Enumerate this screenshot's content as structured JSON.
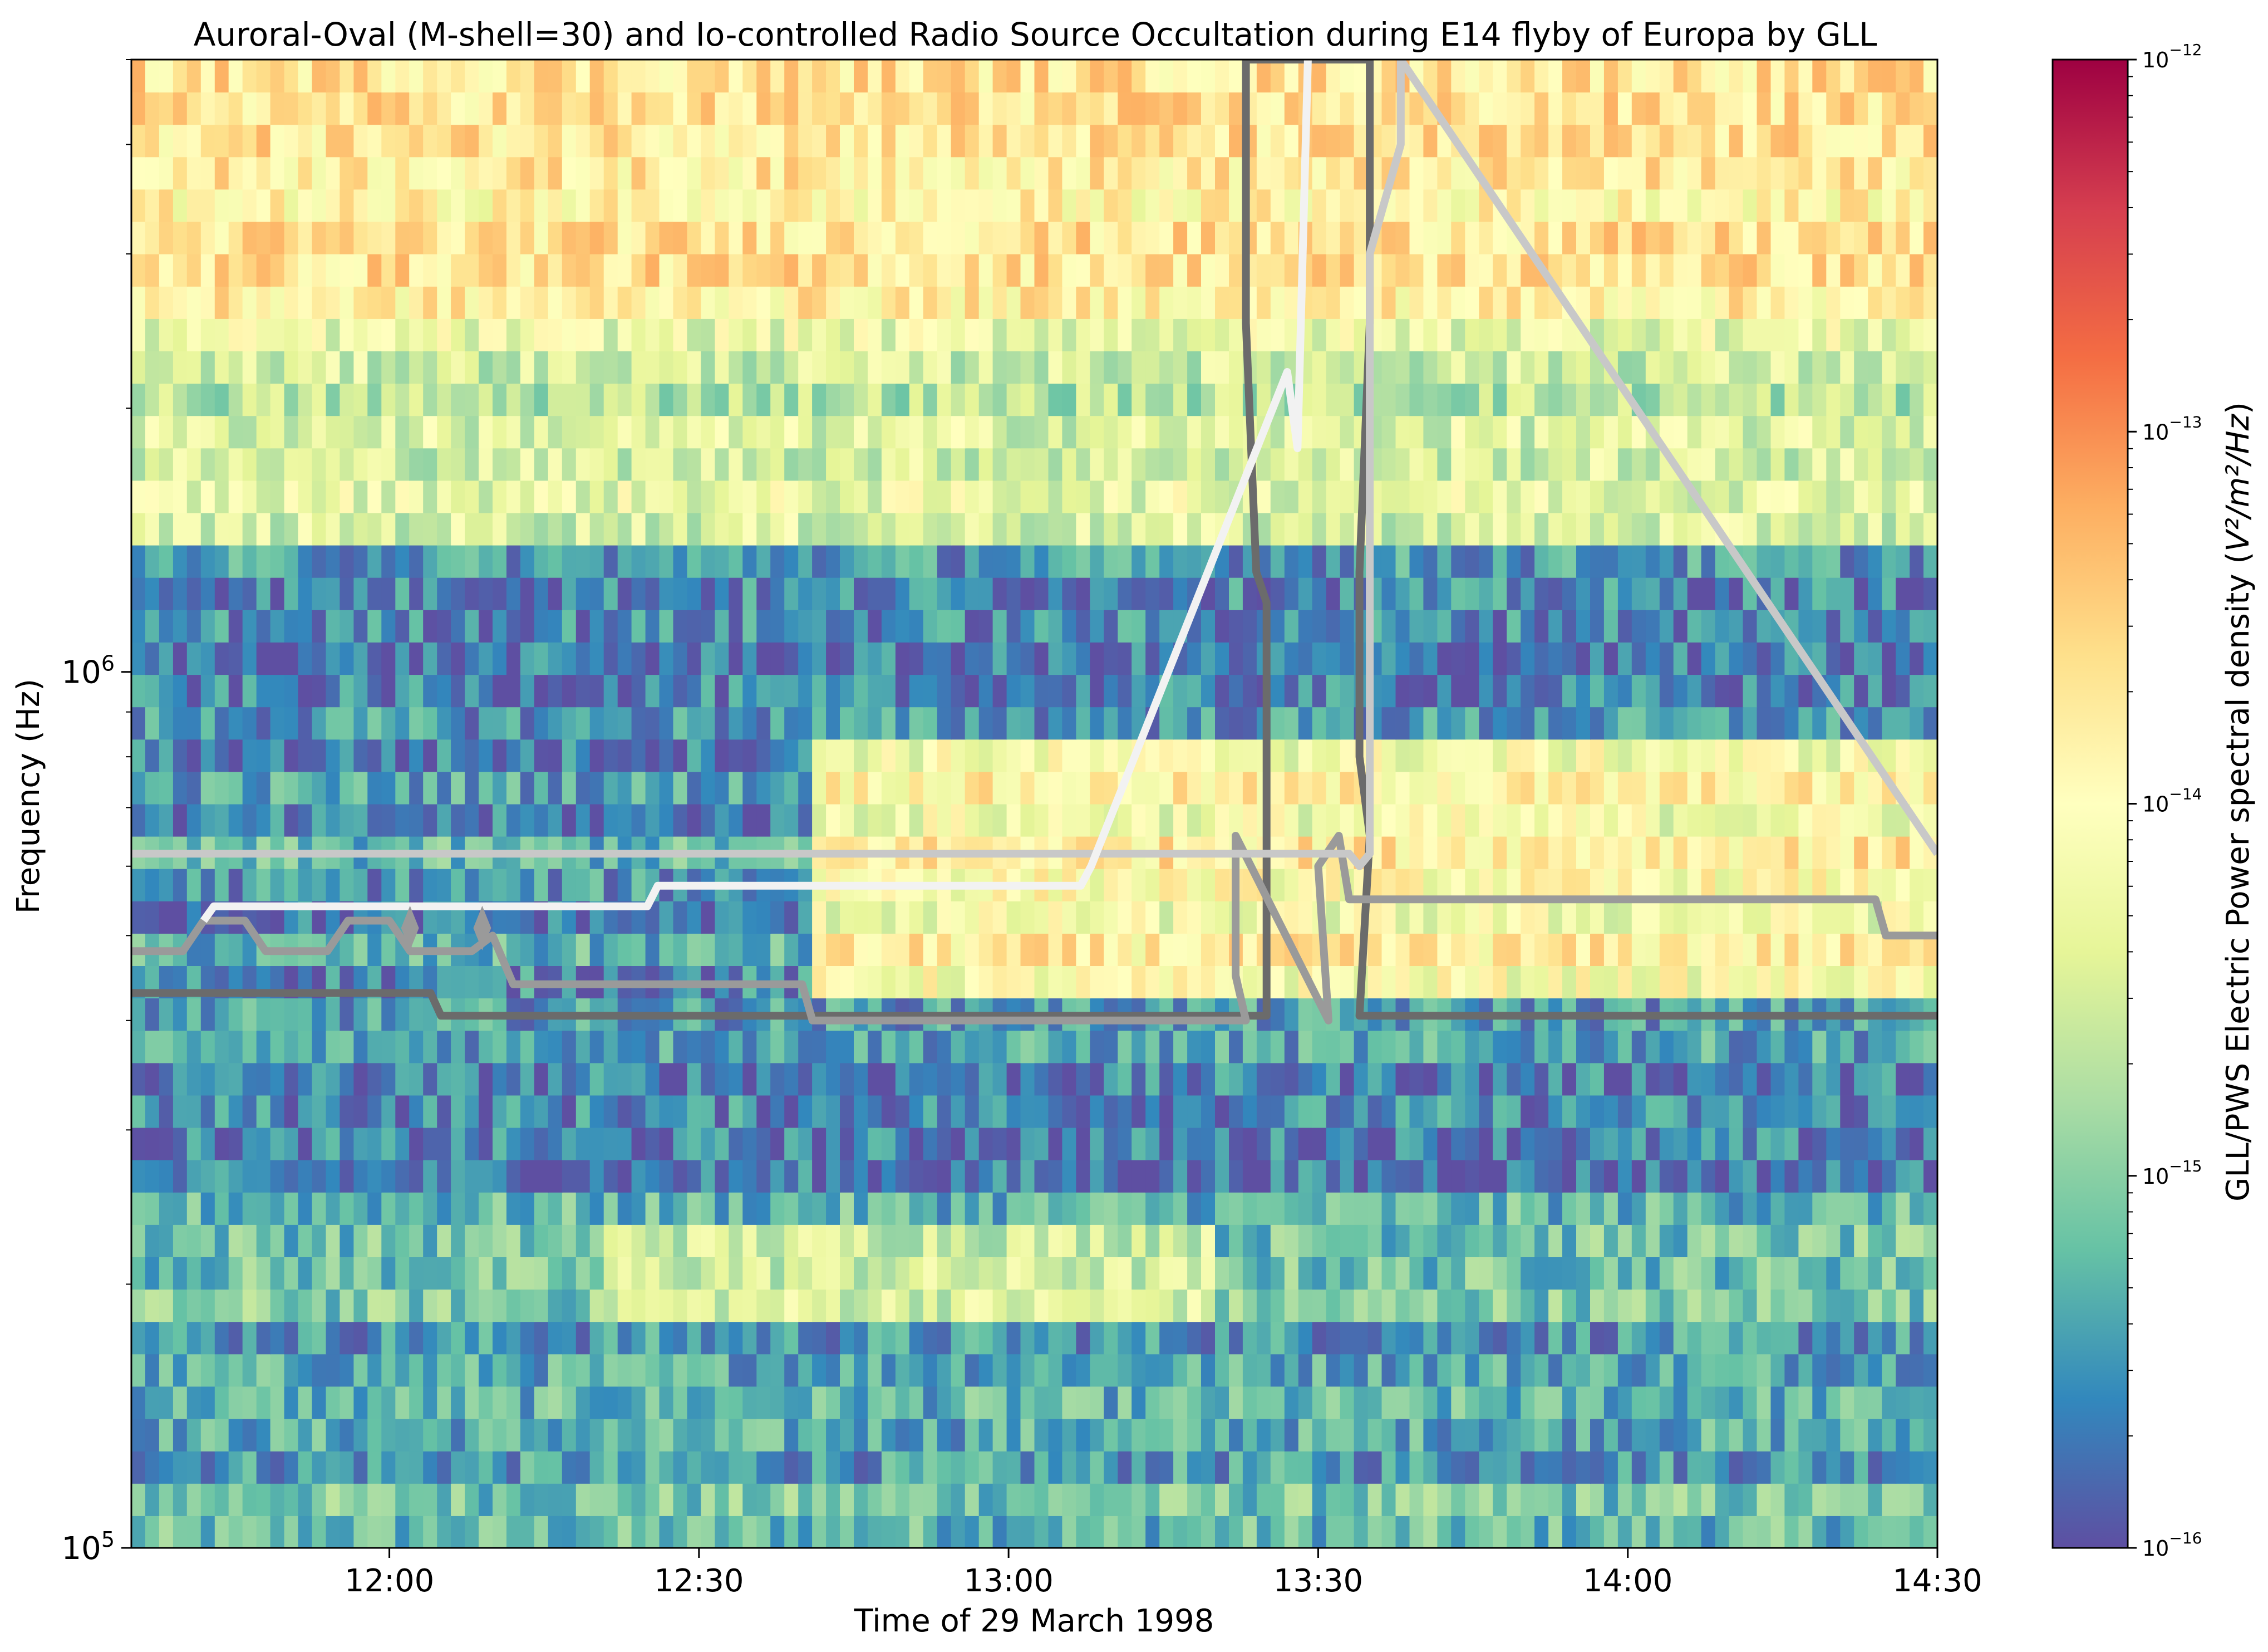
{
  "chart_data": {
    "type": "heatmap",
    "title": "Auroral-Oval (M-shell=30) and Io-controlled Radio Source Occultation during E14 flyby of Europa by GLL",
    "xlabel": "Time of 29 March 1998",
    "ylabel": "Frequency (Hz)",
    "x_range": [
      "11:35",
      "14:30"
    ],
    "x_ticks": [
      "12:00",
      "12:30",
      "13:00",
      "13:30",
      "14:00",
      "14:30"
    ],
    "y_scale": "log",
    "y_range": [
      100000,
      5000000
    ],
    "y_ticks": [
      {
        "value": 100000,
        "base": "10",
        "exp": "5"
      },
      {
        "value": 1000000,
        "base": "10",
        "exp": "6"
      }
    ],
    "colorbar": {
      "label_prefix": "GLL/PWS Electric Power spectral density (",
      "label_unit": "V²/m²/Hz",
      "label_suffix": ")",
      "scale": "log",
      "colormap": "Spectral_r",
      "range": [
        1e-16,
        1e-12
      ],
      "ticks": [
        {
          "value": 1e-16,
          "base": "10",
          "exp": "−16"
        },
        {
          "value": 1e-15,
          "base": "10",
          "exp": "−15"
        },
        {
          "value": 1e-14,
          "base": "10",
          "exp": "−14"
        },
        {
          "value": 1e-13,
          "base": "10",
          "exp": "−13"
        },
        {
          "value": 1e-12,
          "base": "10",
          "exp": "−12"
        }
      ]
    },
    "spectrogram_bands": [
      {
        "f_low": 100000,
        "f_high": 180000,
        "log10_psd": -15.3,
        "description": "background"
      },
      {
        "f_low": 180000,
        "f_high": 240000,
        "log10_psd": -15.1,
        "description": "moderate, brighter 12:20-13:20"
      },
      {
        "f_low": 240000,
        "f_high": 430000,
        "log10_psd": -15.5,
        "description": "weak"
      },
      {
        "f_low": 430000,
        "f_high": 820000,
        "log10_psd": -14.6,
        "description": "weak before 12:40, strong after 12:40"
      },
      {
        "f_low": 820000,
        "f_high": 1400000,
        "log10_psd": -15.7,
        "description": "weak"
      },
      {
        "f_low": 1400000,
        "f_high": 2600000,
        "log10_psd": -14.5,
        "description": "moderate"
      },
      {
        "f_low": 2600000,
        "f_high": 5000000,
        "log10_psd": -13.8,
        "description": "strong"
      }
    ],
    "series": [
      {
        "color": "#6b6b6b",
        "x": [
          "11:35",
          "11:64",
          "11:65",
          "13:25",
          "13:25",
          "13:24",
          "13:23",
          "13:23",
          "13:35",
          "13:35",
          "13:34",
          "13:34",
          "13:35",
          "13:34",
          "14:30"
        ],
        "y": [
          430000,
          430000,
          405000,
          405000,
          1200000,
          1300000,
          2500000,
          5000000,
          5000000,
          2500000,
          1300000,
          800000,
          650000,
          405000,
          405000
        ]
      },
      {
        "color": "#9a9a9a",
        "x": [
          "11:35",
          "11:40",
          "11:42",
          "11:46",
          "11:48",
          "11:54",
          "11:56",
          "11:60",
          "11:62",
          "12:08",
          "12:10",
          "12:12",
          "12:40",
          "12:41",
          "13:23",
          "13:22",
          "13:22",
          "13:31",
          "13:30",
          "13:32",
          "13:33",
          "14:24",
          "14:25",
          "14:30"
        ],
        "y": [
          480000,
          480000,
          520000,
          520000,
          480000,
          480000,
          520000,
          520000,
          480000,
          480000,
          500000,
          440000,
          440000,
          400000,
          400000,
          450000,
          650000,
          400000,
          600000,
          650000,
          550000,
          550000,
          500000,
          500000
        ]
      },
      {
        "color": "#c8c8c8",
        "x": [
          "11:35",
          "13:33",
          "13:34",
          "13:35",
          "13:35",
          "13:38",
          "13:38",
          "14:30"
        ],
        "y": [
          620000,
          620000,
          600000,
          620000,
          3000000,
          4000000,
          5000000,
          620000
        ]
      },
      {
        "color": "#f2f2f2",
        "x": [
          "11:42",
          "11:43",
          "12:25",
          "12:26",
          "13:07",
          "13:08",
          "13:27",
          "13:28",
          "13:29"
        ],
        "y": [
          520000,
          540000,
          540000,
          570000,
          570000,
          600000,
          2200000,
          1800000,
          5000000
        ]
      }
    ],
    "markers": [
      {
        "x": "12:02",
        "y": 510000,
        "shape": "diamond",
        "color": "#9a9a9a"
      },
      {
        "x": "12:09",
        "y": 510000,
        "shape": "diamond",
        "color": "#9a9a9a"
      }
    ]
  }
}
